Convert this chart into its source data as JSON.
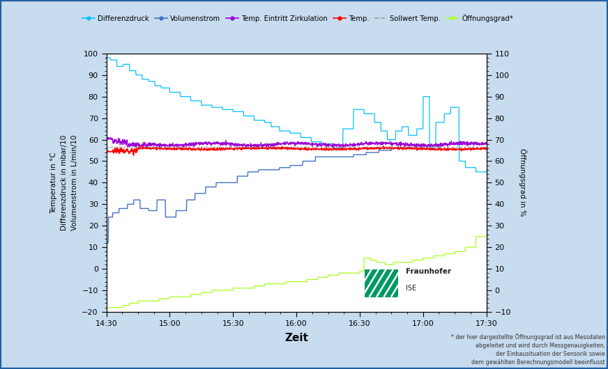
{
  "xlabel": "Zeit",
  "ylabel_left": "Temperatur in °C\nDifferenzdruck in mbar/10\nVolumenstrom in L/min/10",
  "ylabel_right": "Öffnungsgrad in %",
  "xlim": [
    0,
    180
  ],
  "ylim_left": [
    -20,
    100
  ],
  "ylim_right": [
    -10,
    110
  ],
  "xtick_labels": [
    "14:30",
    "15:00",
    "15:30",
    "16:00",
    "16:30",
    "17:00",
    "17:30"
  ],
  "xtick_positions": [
    0,
    30,
    60,
    90,
    120,
    150,
    180
  ],
  "ytick_left": [
    -20,
    -10,
    0,
    10,
    20,
    30,
    40,
    50,
    60,
    70,
    80,
    90,
    100
  ],
  "ytick_right": [
    -10,
    0,
    10,
    20,
    30,
    40,
    50,
    60,
    70,
    80,
    90,
    100,
    110
  ],
  "color_differenzdruck": "#00BFFF",
  "color_volumenstrom": "#4472C4",
  "color_temp_zirk": "#9B00D3",
  "color_temp_ventil": "#FF0000",
  "color_sollwert": "#999999",
  "color_oeffnung": "#ADFF2F",
  "background_color": "#C8DCF0",
  "plot_bg": "#FFFFFF",
  "border_color": "#2060A0",
  "fraunhofer_green": "#009966",
  "footnote": "* der hier dargestellte Öffnungsgrad ist aus Messdaten\nabgeleitet und wird durch Messgenauigkeiten,\nder Einbausituation der Sensorik sowie\ndem gewählten Berechnungsmodell beeinflusst"
}
